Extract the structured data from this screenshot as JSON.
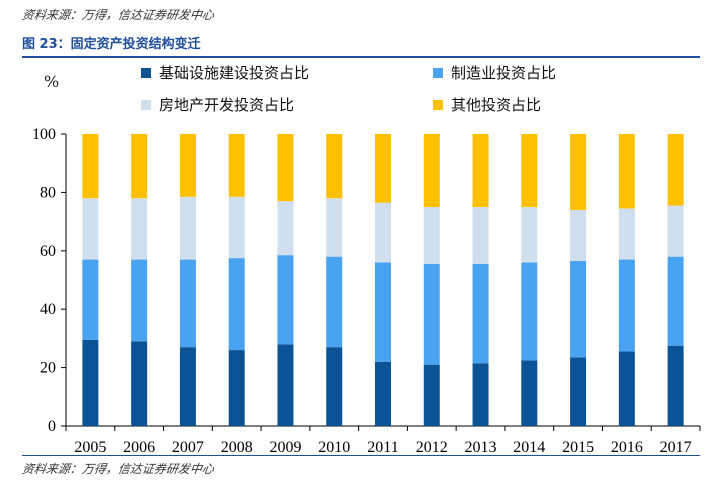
{
  "source_top": "资料来源：万得，信达证券研发中心",
  "figure_title": "图 23：固定资产投资结构变迁",
  "source_bottom": "资料来源：万得，信达证券研发中心",
  "chart_data": {
    "type": "bar",
    "stacked": true,
    "ylabel": "%",
    "ylim": [
      0,
      100
    ],
    "yticks": [
      0,
      20,
      40,
      60,
      80,
      100
    ],
    "categories": [
      "2005",
      "2006",
      "2007",
      "2008",
      "2009",
      "2010",
      "2011",
      "2012",
      "2013",
      "2014",
      "2015",
      "2016",
      "2017"
    ],
    "series": [
      {
        "name": "基础设施建设投资占比",
        "color": "#0b5394",
        "values": [
          29.5,
          29,
          27,
          26,
          28,
          27,
          22,
          21,
          21.5,
          22.5,
          23.5,
          25.5,
          27.5
        ]
      },
      {
        "name": "制造业投资占比",
        "color": "#4aa3f0",
        "values": [
          27.5,
          28,
          30,
          31.5,
          30.5,
          31,
          34,
          34.5,
          34,
          33.5,
          33,
          31.5,
          30.5
        ]
      },
      {
        "name": "房地产开发投资占比",
        "color": "#d0dfee",
        "values": [
          21,
          21,
          21.5,
          21,
          18.5,
          20,
          20.5,
          19.5,
          19.5,
          19,
          17.5,
          17.5,
          17.5
        ]
      },
      {
        "name": "其他投资占比",
        "color": "#ffc000",
        "values": [
          22,
          22,
          21.5,
          21.5,
          23,
          22,
          23.5,
          25,
          25,
          25,
          26,
          25.5,
          24.5
        ]
      }
    ],
    "legend_position": "top",
    "grid": false
  }
}
